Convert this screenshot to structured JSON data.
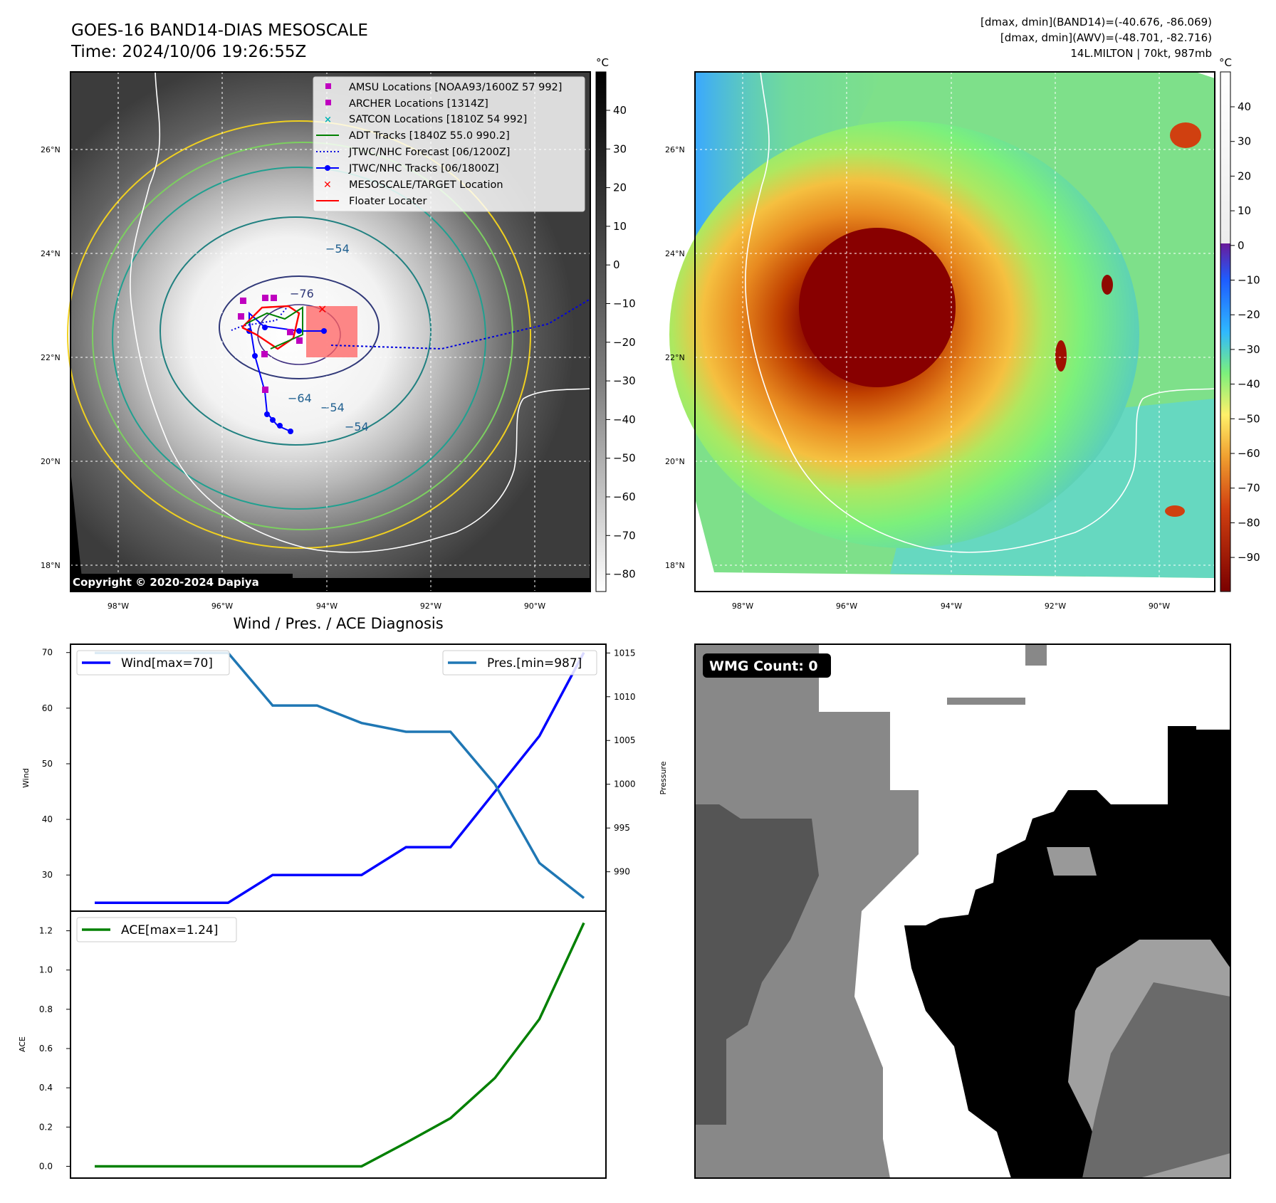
{
  "header": {
    "title_line1": "GOES-16 BAND14-DIAS MESOSCALE",
    "title_line2": "Time: 2024/10/06 19:26:55Z",
    "info_line1": "[dmax, dmin](BAND14)=(-40.676, -86.069)",
    "info_line2": "[dmax, dmin](AWV)=(-48.701, -82.716)",
    "info_line3": "14L.MILTON | 70kt, 987mb"
  },
  "colors": {
    "wind": "#0000ff",
    "pressure": "#1f77b4",
    "ace": "#008000",
    "amsu": "#bf00bf",
    "satcon": "#00b3b3",
    "adt": "#008000",
    "target": "#ff0000"
  },
  "map_panel_left": {
    "unit": "°C",
    "colorbar_ticks": [
      "40",
      "30",
      "20",
      "10",
      "0",
      "−10",
      "−20",
      "−30",
      "−40",
      "−50",
      "−60",
      "−70",
      "−80"
    ],
    "lat_labels": [
      "26°N",
      "24°N",
      "22°N",
      "20°N",
      "18°N"
    ],
    "lon_labels": [
      "98°W",
      "96°W",
      "94°W",
      "92°W",
      "90°W"
    ],
    "contour_labels": [
      "−54",
      "−76",
      "−64",
      "−54",
      "−54"
    ],
    "copyright": "Copyright © 2020-2024 Dapiya",
    "legend": [
      {
        "label": "AMSU Locations [NOAA93/1600Z 57 992]",
        "icon": "magenta-square"
      },
      {
        "label": "ARCHER Locations [1314Z]",
        "icon": "magenta-square"
      },
      {
        "label": "SATCON Locations [1810Z 54 992]",
        "icon": "cyan-x"
      },
      {
        "label": "ADT Tracks [1840Z 55.0 990.2]",
        "icon": "green-line"
      },
      {
        "label": "JTWC/NHC Forecast [06/1200Z]",
        "icon": "blue-dotted-line"
      },
      {
        "label": "JTWC/NHC Tracks [06/1800Z]",
        "icon": "blue-dot-line"
      },
      {
        "label": "MESOSCALE/TARGET Location",
        "icon": "red-x"
      },
      {
        "label": "Floater Locater",
        "icon": "red-line"
      }
    ]
  },
  "map_panel_right": {
    "unit": "°C",
    "colorbar_ticks": [
      "40",
      "30",
      "20",
      "10",
      "0",
      "−10",
      "−20",
      "−30",
      "−40",
      "−50",
      "−60",
      "−70",
      "−80",
      "−90"
    ],
    "lat_labels": [
      "26°N",
      "24°N",
      "22°N",
      "20°N",
      "18°N"
    ],
    "lon_labels": [
      "98°W",
      "96°W",
      "94°W",
      "92°W",
      "90°W"
    ]
  },
  "diagnosis_panel": {
    "title": "Wind / Pres. / ACE Diagnosis",
    "wind_axis_label": "Wind",
    "pressure_axis_label": "Pressure",
    "ace_axis_label": "ACE",
    "wind_legend": "Wind[max=70]",
    "pressure_legend": "Pres.[min=987]",
    "ace_legend": "ACE[max=1.24]"
  },
  "wmg_panel": {
    "badge": "WMG Count: 0"
  },
  "chart_data": [
    {
      "type": "line",
      "title": "Wind / Pres. / ACE Diagnosis",
      "x": [
        0,
        1,
        2,
        3,
        4,
        5,
        6,
        7,
        8,
        9,
        10,
        11
      ],
      "series": [
        {
          "name": "Wind[max=70]",
          "axis": "left",
          "values": [
            25,
            25,
            25,
            25,
            30,
            30,
            30,
            35,
            35,
            45,
            55,
            70
          ]
        },
        {
          "name": "Pres.[min=987]",
          "axis": "right",
          "values": [
            1015,
            1015,
            1015,
            1015,
            1009,
            1009,
            1007,
            1006,
            1006,
            1000,
            991,
            987
          ]
        }
      ],
      "ylabel": "Wind",
      "ylim": [
        23.5,
        71.5
      ],
      "yticks": [
        30,
        40,
        50,
        60,
        70
      ],
      "y2label": "Pressure",
      "y2lim": [
        985.5,
        1016
      ],
      "y2ticks": [
        990,
        995,
        1000,
        1005,
        1010,
        1015
      ],
      "grid": false,
      "legend": [
        "top-left",
        "top-right"
      ]
    },
    {
      "type": "line",
      "x": [
        0,
        1,
        2,
        3,
        4,
        5,
        6,
        7,
        8,
        9,
        10,
        11
      ],
      "series": [
        {
          "name": "ACE[max=1.24]",
          "values": [
            0,
            0,
            0,
            0,
            0,
            0,
            0,
            0.12,
            0.245,
            0.45,
            0.75,
            1.24
          ]
        }
      ],
      "ylabel": "ACE",
      "ylim": [
        -0.06,
        1.3
      ],
      "yticks": [
        0.0,
        0.2,
        0.4,
        0.6,
        0.8,
        1.0,
        1.2
      ],
      "yticklabels": [
        "0.0",
        "0.2",
        "0.4",
        "0.6",
        "0.8",
        "1.0",
        "1.2"
      ],
      "grid": false,
      "legend": "top-left"
    }
  ]
}
